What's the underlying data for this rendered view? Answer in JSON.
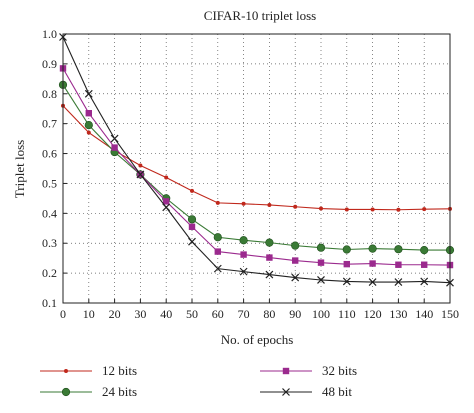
{
  "chart_data": {
    "type": "line",
    "title": "CIFAR-10 triplet loss",
    "xlabel": "No. of epochs",
    "ylabel": "Triplet loss",
    "xlim": [
      0,
      150
    ],
    "ylim": [
      0.1,
      1.0
    ],
    "x_ticks": [
      "0",
      "10",
      "20",
      "30",
      "40",
      "50",
      "60",
      "70",
      "80",
      "90",
      "100",
      "110",
      "120",
      "130",
      "140",
      "150"
    ],
    "y_ticks": [
      "0.1",
      "0.2",
      "0.3",
      "0.4",
      "0.5",
      "0.6",
      "0.7",
      "0.8",
      "0.9",
      "1.0"
    ],
    "grid": true,
    "legend_position": "bottom",
    "x": [
      0,
      10,
      20,
      30,
      40,
      50,
      60,
      70,
      80,
      90,
      100,
      110,
      120,
      130,
      140,
      150
    ],
    "series": [
      {
        "name": "12 bits",
        "color": "#c0281c",
        "marker": "dot",
        "values": [
          0.76,
          0.67,
          0.61,
          0.56,
          0.52,
          0.475,
          0.435,
          0.432,
          0.428,
          0.422,
          0.416,
          0.413,
          0.413,
          0.412,
          0.414,
          0.415
        ]
      },
      {
        "name": "24 bits",
        "color": "#3a7a35",
        "marker": "circle",
        "values": [
          0.83,
          0.695,
          0.605,
          0.53,
          0.45,
          0.38,
          0.32,
          0.31,
          0.302,
          0.292,
          0.285,
          0.279,
          0.282,
          0.28,
          0.277,
          0.277
        ]
      },
      {
        "name": "32 bits",
        "color": "#9b2a8e",
        "marker": "square",
        "values": [
          0.885,
          0.735,
          0.62,
          0.53,
          0.44,
          0.355,
          0.272,
          0.262,
          0.252,
          0.242,
          0.235,
          0.23,
          0.232,
          0.228,
          0.228,
          0.227
        ]
      },
      {
        "name": "48 bit",
        "color": "#222222",
        "marker": "x",
        "values": [
          0.99,
          0.8,
          0.65,
          0.53,
          0.42,
          0.305,
          0.215,
          0.205,
          0.195,
          0.185,
          0.177,
          0.172,
          0.17,
          0.17,
          0.172,
          0.168
        ]
      }
    ]
  }
}
